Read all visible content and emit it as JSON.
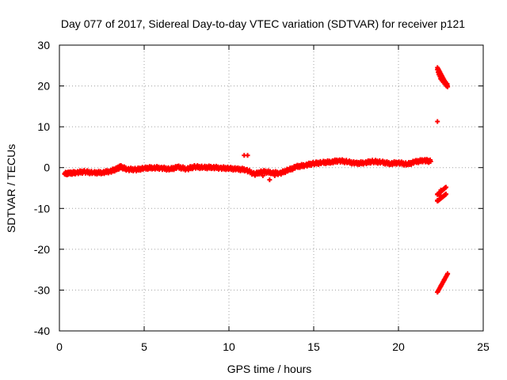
{
  "chart_data": {
    "type": "scatter",
    "title": "Day 077 of 2017, Sidereal Day-to-day VTEC variation (SDTVAR) for receiver p121",
    "xlabel": "GPS time / hours",
    "ylabel": "SDTVAR / TECUs",
    "xlim": [
      0,
      25
    ],
    "ylim": [
      -40,
      30
    ],
    "xticks": [
      "0",
      "5",
      "10",
      "15",
      "20",
      "25"
    ],
    "yticks": [
      "-40",
      "-30",
      "-20",
      "-10",
      "0",
      "10",
      "20",
      "30"
    ],
    "grid": true,
    "marker": "plus",
    "color": "#ff0000",
    "series": [
      {
        "x": [
          0.3,
          0.6,
          1.0,
          1.5,
          2.0,
          2.5,
          3.0,
          3.4,
          3.6,
          4.0,
          4.5,
          5.0,
          5.5,
          6.0,
          6.5,
          7.0,
          7.5,
          8.0,
          8.5,
          9.0,
          9.5,
          10.0,
          10.5,
          11.0,
          11.5,
          12.0,
          12.5,
          13.0,
          13.5,
          14.0,
          14.5,
          15.0,
          15.5,
          16.0,
          16.5,
          17.0,
          17.5,
          18.0,
          18.5,
          19.0,
          19.5,
          20.0,
          20.5,
          21.0,
          21.5,
          21.9,
          22.3,
          22.5,
          22.7,
          22.9
        ],
        "y": [
          -1.5,
          -1.4,
          -1.2,
          -1.0,
          -1.3,
          -1.2,
          -0.9,
          -0.3,
          0.2,
          -0.4,
          -0.5,
          -0.2,
          0.0,
          -0.1,
          -0.4,
          0.1,
          -0.3,
          0.2,
          0.0,
          0.1,
          -0.1,
          -0.2,
          -0.4,
          -0.5,
          -1.6,
          -1.0,
          -1.2,
          -1.4,
          -0.6,
          0.2,
          0.6,
          1.0,
          1.2,
          1.4,
          1.7,
          1.4,
          1.0,
          1.2,
          1.5,
          1.3,
          1.0,
          1.2,
          0.8,
          1.4,
          1.8,
          1.5,
          24.0,
          22.0,
          21.0,
          20.0
        ]
      },
      {
        "x": [
          10.9,
          11.1,
          12.0,
          12.4,
          12.7,
          22.3,
          22.3,
          22.5,
          22.8,
          22.3,
          22.5,
          22.8,
          22.3,
          22.5,
          22.7,
          22.9
        ],
        "y": [
          3.0,
          3.0,
          -2.0,
          -3.0,
          -2.0,
          11.3,
          -8.0,
          -7.0,
          -6.5,
          -6.5,
          -5.5,
          -4.8,
          -30.5,
          -29.0,
          -27.5,
          -26.0
        ]
      }
    ]
  }
}
